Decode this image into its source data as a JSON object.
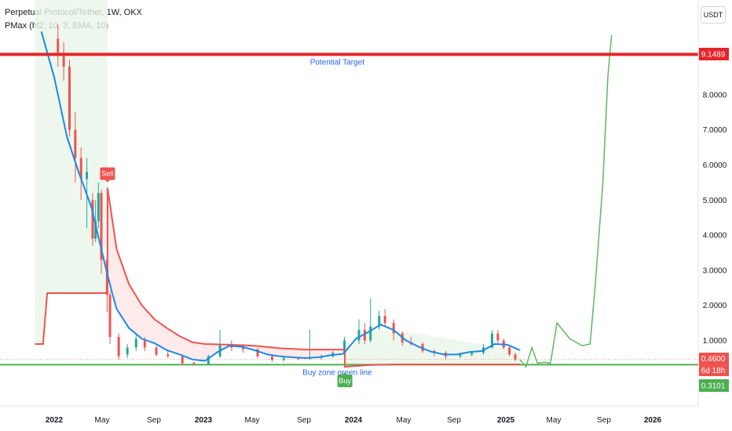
{
  "header": {
    "title": "Perpetual Protocol/Tether, 1W, OKX",
    "indicator": "PMax (hl2, 10, 3, EMA, 10)",
    "currency": "USDT"
  },
  "colors": {
    "up": "#26a69a",
    "down": "#ef5350",
    "ema": "#1e88e5",
    "pmax": "#ef5350",
    "target_line": "#e5252a",
    "support_line": "#4caf50",
    "projection": "#66bb6a",
    "annotation_text": "#2962ff"
  },
  "chart_data": {
    "type": "line",
    "x_axis": {
      "ticks": [
        "2022",
        "May",
        "Sep",
        "2023",
        "May",
        "Sep",
        "2024",
        "May",
        "Sep",
        "2025",
        "May",
        "Sep",
        "2026"
      ],
      "bold_ticks": [
        "2022",
        "2023",
        "2024",
        "2025",
        "2026"
      ]
    },
    "y_axis": {
      "ticks": [
        "1.0000",
        "2.0000",
        "3.0000",
        "4.0000",
        "5.0000",
        "6.0000",
        "7.0000",
        "8.0000"
      ],
      "range": [
        0,
        10
      ]
    },
    "price_labels": {
      "target": "9.1489",
      "last": "0.4600",
      "countdown": "6d 18h",
      "support": "0.3101"
    },
    "horizontal_lines": [
      {
        "name": "Potential Target",
        "value": 9.1489
      },
      {
        "name": "Buy zone green line",
        "value": 0.3101
      }
    ],
    "annotations": {
      "potential_target": "Potential Target",
      "buy_zone": "Buy zone green line"
    },
    "signals": [
      {
        "label": "Sell",
        "date": "2022-05-10",
        "value": 5.35
      },
      {
        "label": "Buy",
        "date": "2023-12-05",
        "value": 0.25
      }
    ],
    "ema_line": [
      [
        "2021-12-01",
        9.8
      ],
      [
        "2022-01-01",
        8.5
      ],
      [
        "2022-02-01",
        6.8
      ],
      [
        "2022-03-01",
        5.8
      ],
      [
        "2022-04-01",
        4.8
      ],
      [
        "2022-05-01",
        3.3
      ],
      [
        "2022-05-20",
        2.4
      ],
      [
        "2022-06-01",
        1.9
      ],
      [
        "2022-07-01",
        1.35
      ],
      [
        "2022-08-01",
        1.05
      ],
      [
        "2022-09-01",
        0.92
      ],
      [
        "2022-10-01",
        0.72
      ],
      [
        "2022-11-01",
        0.6
      ],
      [
        "2022-12-01",
        0.46
      ],
      [
        "2023-01-01",
        0.42
      ],
      [
        "2023-02-01",
        0.68
      ],
      [
        "2023-03-01",
        0.85
      ],
      [
        "2023-04-01",
        0.82
      ],
      [
        "2023-05-01",
        0.72
      ],
      [
        "2023-06-01",
        0.6
      ],
      [
        "2023-07-01",
        0.55
      ],
      [
        "2023-08-01",
        0.52
      ],
      [
        "2023-09-01",
        0.5
      ],
      [
        "2023-10-01",
        0.52
      ],
      [
        "2023-11-01",
        0.58
      ],
      [
        "2023-12-01",
        0.62
      ],
      [
        "2024-01-01",
        1.05
      ],
      [
        "2024-02-01",
        1.25
      ],
      [
        "2024-03-01",
        1.45
      ],
      [
        "2024-04-01",
        1.3
      ],
      [
        "2024-05-01",
        1.0
      ],
      [
        "2024-06-01",
        0.82
      ],
      [
        "2024-07-01",
        0.68
      ],
      [
        "2024-08-01",
        0.6
      ],
      [
        "2024-09-01",
        0.6
      ],
      [
        "2024-10-01",
        0.67
      ],
      [
        "2024-11-01",
        0.7
      ],
      [
        "2024-12-01",
        0.9
      ],
      [
        "2025-01-01",
        0.88
      ],
      [
        "2025-02-01",
        0.72
      ]
    ],
    "pmax_line": [
      [
        "2021-11-15",
        0.9
      ],
      [
        "2021-12-05",
        0.9
      ],
      [
        "2021-12-15",
        2.35
      ],
      [
        "2022-05-10",
        2.35
      ],
      [
        "2022-05-10",
        5.35
      ],
      [
        "2022-06-01",
        3.6
      ],
      [
        "2022-07-01",
        2.6
      ],
      [
        "2022-08-01",
        2.0
      ],
      [
        "2022-09-01",
        1.6
      ],
      [
        "2022-10-01",
        1.35
      ],
      [
        "2022-11-01",
        1.12
      ],
      [
        "2022-12-01",
        0.95
      ],
      [
        "2023-01-01",
        0.9
      ],
      [
        "2023-03-01",
        0.88
      ],
      [
        "2023-05-01",
        0.85
      ],
      [
        "2023-07-01",
        0.78
      ],
      [
        "2023-09-01",
        0.74
      ],
      [
        "2023-12-05",
        0.74
      ],
      [
        "2023-12-05",
        0.25
      ],
      [
        "2024-02-01",
        0.3
      ],
      [
        "2024-04-01",
        0.32
      ],
      [
        "2025-02-01",
        0.32
      ]
    ],
    "projection": [
      [
        "2025-02-01",
        0.45
      ],
      [
        "2025-02-15",
        0.25
      ],
      [
        "2025-03-01",
        0.8
      ],
      [
        "2025-03-15",
        0.35
      ],
      [
        "2025-04-01",
        0.38
      ],
      [
        "2025-04-15",
        0.35
      ],
      [
        "2025-05-01",
        1.5
      ],
      [
        "2025-06-01",
        1.05
      ],
      [
        "2025-07-01",
        0.85
      ],
      [
        "2025-07-20",
        0.9
      ],
      [
        "2025-08-01",
        2.5
      ],
      [
        "2025-08-20",
        5.5
      ],
      [
        "2025-09-01",
        8.5
      ],
      [
        "2025-09-10",
        9.7
      ]
    ],
    "candles": [
      [
        "2022-01-10",
        9.6,
        9.2,
        10.0,
        8.8
      ],
      [
        "2022-01-24",
        9.2,
        8.8,
        9.5,
        8.4
      ],
      [
        "2022-02-07",
        8.8,
        7.0,
        9.0,
        6.8
      ],
      [
        "2022-02-21",
        7.0,
        6.2,
        7.5,
        5.5
      ],
      [
        "2022-03-07",
        6.2,
        5.6,
        6.5,
        5.0
      ],
      [
        "2022-03-21",
        5.6,
        5.8,
        6.2,
        4.2
      ],
      [
        "2022-04-04",
        5.0,
        3.9,
        5.2,
        3.7
      ],
      [
        "2022-04-11",
        3.9,
        4.4,
        5.0,
        3.8
      ],
      [
        "2022-04-18",
        4.4,
        5.2,
        5.5,
        4.2
      ],
      [
        "2022-04-25",
        5.2,
        3.3,
        5.3,
        2.9
      ],
      [
        "2022-05-09",
        3.3,
        2.3,
        3.4,
        1.8
      ],
      [
        "2022-05-16",
        2.3,
        1.1,
        2.4,
        0.9
      ],
      [
        "2022-06-06",
        1.1,
        0.55,
        1.2,
        0.45
      ],
      [
        "2022-06-27",
        0.6,
        0.8,
        0.9,
        0.5
      ],
      [
        "2022-07-18",
        0.8,
        1.05,
        1.2,
        0.7
      ],
      [
        "2022-08-08",
        1.0,
        0.8,
        1.1,
        0.7
      ],
      [
        "2022-09-05",
        0.8,
        0.6,
        0.85,
        0.55
      ],
      [
        "2022-10-03",
        0.6,
        0.55,
        0.7,
        0.5
      ],
      [
        "2022-11-07",
        0.55,
        0.35,
        0.6,
        0.3
      ],
      [
        "2022-12-05",
        0.36,
        0.33,
        0.4,
        0.3
      ],
      [
        "2023-01-09",
        0.33,
        0.55,
        0.6,
        0.3
      ],
      [
        "2023-02-06",
        0.55,
        0.9,
        1.3,
        0.5
      ],
      [
        "2023-03-06",
        0.9,
        0.8,
        1.0,
        0.7
      ],
      [
        "2023-04-03",
        0.8,
        0.75,
        0.9,
        0.65
      ],
      [
        "2023-05-08",
        0.75,
        0.55,
        0.78,
        0.5
      ],
      [
        "2023-06-12",
        0.55,
        0.45,
        0.6,
        0.4
      ],
      [
        "2023-07-10",
        0.45,
        0.5,
        0.55,
        0.4
      ],
      [
        "2023-08-14",
        0.5,
        0.48,
        0.52,
        0.44
      ],
      [
        "2023-09-11",
        0.48,
        0.5,
        1.3,
        0.45
      ],
      [
        "2023-10-09",
        0.5,
        0.55,
        0.6,
        0.45
      ],
      [
        "2023-11-06",
        0.55,
        0.65,
        0.7,
        0.5
      ],
      [
        "2023-12-04",
        0.65,
        1.0,
        1.1,
        0.6
      ],
      [
        "2024-01-08",
        1.0,
        1.3,
        1.6,
        0.9
      ],
      [
        "2024-01-22",
        1.3,
        1.0,
        1.5,
        0.9
      ],
      [
        "2024-02-05",
        1.0,
        1.4,
        2.2,
        0.95
      ],
      [
        "2024-02-26",
        1.4,
        1.7,
        1.85,
        1.3
      ],
      [
        "2024-03-11",
        1.7,
        1.5,
        1.9,
        1.4
      ],
      [
        "2024-04-01",
        1.5,
        1.2,
        1.6,
        1.0
      ],
      [
        "2024-04-22",
        1.2,
        0.95,
        1.25,
        0.85
      ],
      [
        "2024-05-13",
        0.95,
        0.9,
        1.1,
        0.85
      ],
      [
        "2024-06-10",
        0.9,
        0.7,
        0.95,
        0.65
      ],
      [
        "2024-07-08",
        0.7,
        0.65,
        0.75,
        0.55
      ],
      [
        "2024-08-05",
        0.65,
        0.55,
        0.7,
        0.45
      ],
      [
        "2024-09-09",
        0.55,
        0.6,
        0.65,
        0.5
      ],
      [
        "2024-10-07",
        0.6,
        0.65,
        0.7,
        0.55
      ],
      [
        "2024-11-04",
        0.65,
        0.8,
        0.9,
        0.6
      ],
      [
        "2024-11-25",
        0.8,
        1.2,
        1.3,
        0.78
      ],
      [
        "2024-12-09",
        1.2,
        1.0,
        1.3,
        0.9
      ],
      [
        "2024-12-23",
        1.0,
        0.8,
        1.05,
        0.75
      ],
      [
        "2025-01-06",
        0.8,
        0.6,
        0.85,
        0.55
      ],
      [
        "2025-01-20",
        0.6,
        0.46,
        0.65,
        0.42
      ]
    ]
  }
}
